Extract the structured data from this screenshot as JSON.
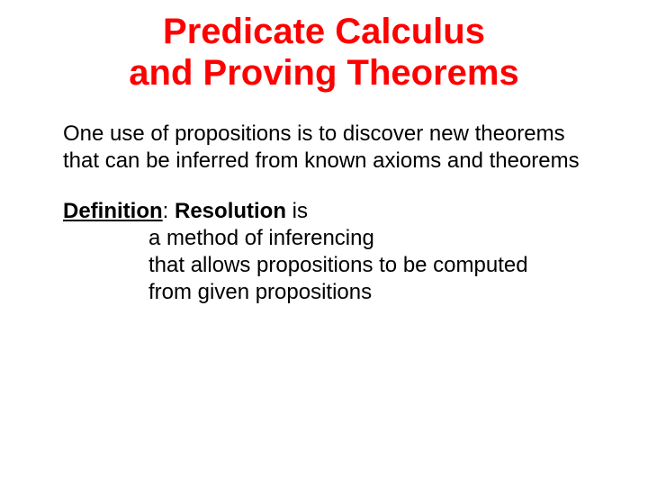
{
  "title": {
    "line1": "Predicate Calculus",
    "line2": "and Proving Theorems",
    "color": "#ff0000",
    "fontsize": 40
  },
  "paragraph": {
    "text": "One use of propositions is to discover new theorems that can be inferred from known axioms and theorems",
    "color": "#000000",
    "fontsize": 24
  },
  "definition": {
    "label": "Definition",
    "colon": ":  ",
    "term": "Resolution",
    "verb": " is",
    "rest_line1": "a method of inferencing",
    "rest_line2": "that allows propositions to be computed",
    "rest_line3": "from given propositions",
    "color": "#000000",
    "fontsize": 24
  },
  "background_color": "#ffffff"
}
